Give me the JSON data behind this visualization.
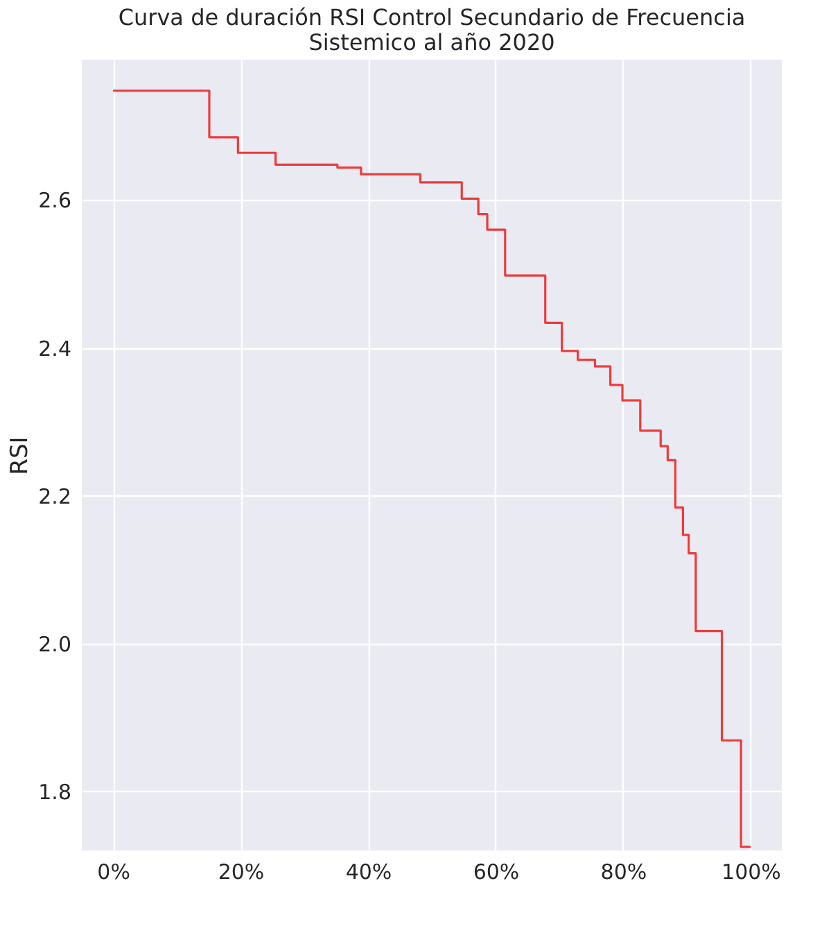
{
  "chart_data": {
    "type": "step",
    "title": "Curva de duración RSI Control Secundario de Frecuencia\nSistemico al año 2020",
    "ylabel": "RSI",
    "x": [
      0,
      15.1,
      19.6,
      25.5,
      35.2,
      38.9,
      48.2,
      54.7,
      57.3,
      58.7,
      61.5,
      67.8,
      70.4,
      72.9,
      75.6,
      78.0,
      79.9,
      82.7,
      85.9,
      87.0,
      88.2,
      89.4,
      90.3,
      91.4,
      95.5,
      98.5,
      100
    ],
    "series": [
      {
        "color": "#ee3b3b",
        "values": [
          2.748,
          2.685,
          2.664,
          2.648,
          2.644,
          2.635,
          2.624,
          2.602,
          2.581,
          2.56,
          2.498,
          2.434,
          2.396,
          2.384,
          2.375,
          2.35,
          2.329,
          2.288,
          2.267,
          2.248,
          2.184,
          2.147,
          2.122,
          2.017,
          1.869,
          1.725,
          1.725
        ]
      }
    ],
    "xlim": [
      -4.9,
      104.9
    ],
    "ylim": [
      1.72,
      2.79
    ],
    "xticks": [
      {
        "value": 0,
        "label": "0%"
      },
      {
        "value": 20,
        "label": "20%"
      },
      {
        "value": 40,
        "label": "40%"
      },
      {
        "value": 60,
        "label": "60%"
      },
      {
        "value": 80,
        "label": "80%"
      },
      {
        "value": 100,
        "label": "100%"
      }
    ],
    "yticks": [
      {
        "value": 1.8,
        "label": "1.8"
      },
      {
        "value": 2.0,
        "label": "2.0"
      },
      {
        "value": 2.2,
        "label": "2.2"
      },
      {
        "value": 2.4,
        "label": "2.4"
      },
      {
        "value": 2.6,
        "label": "2.6"
      }
    ],
    "grid": true
  }
}
